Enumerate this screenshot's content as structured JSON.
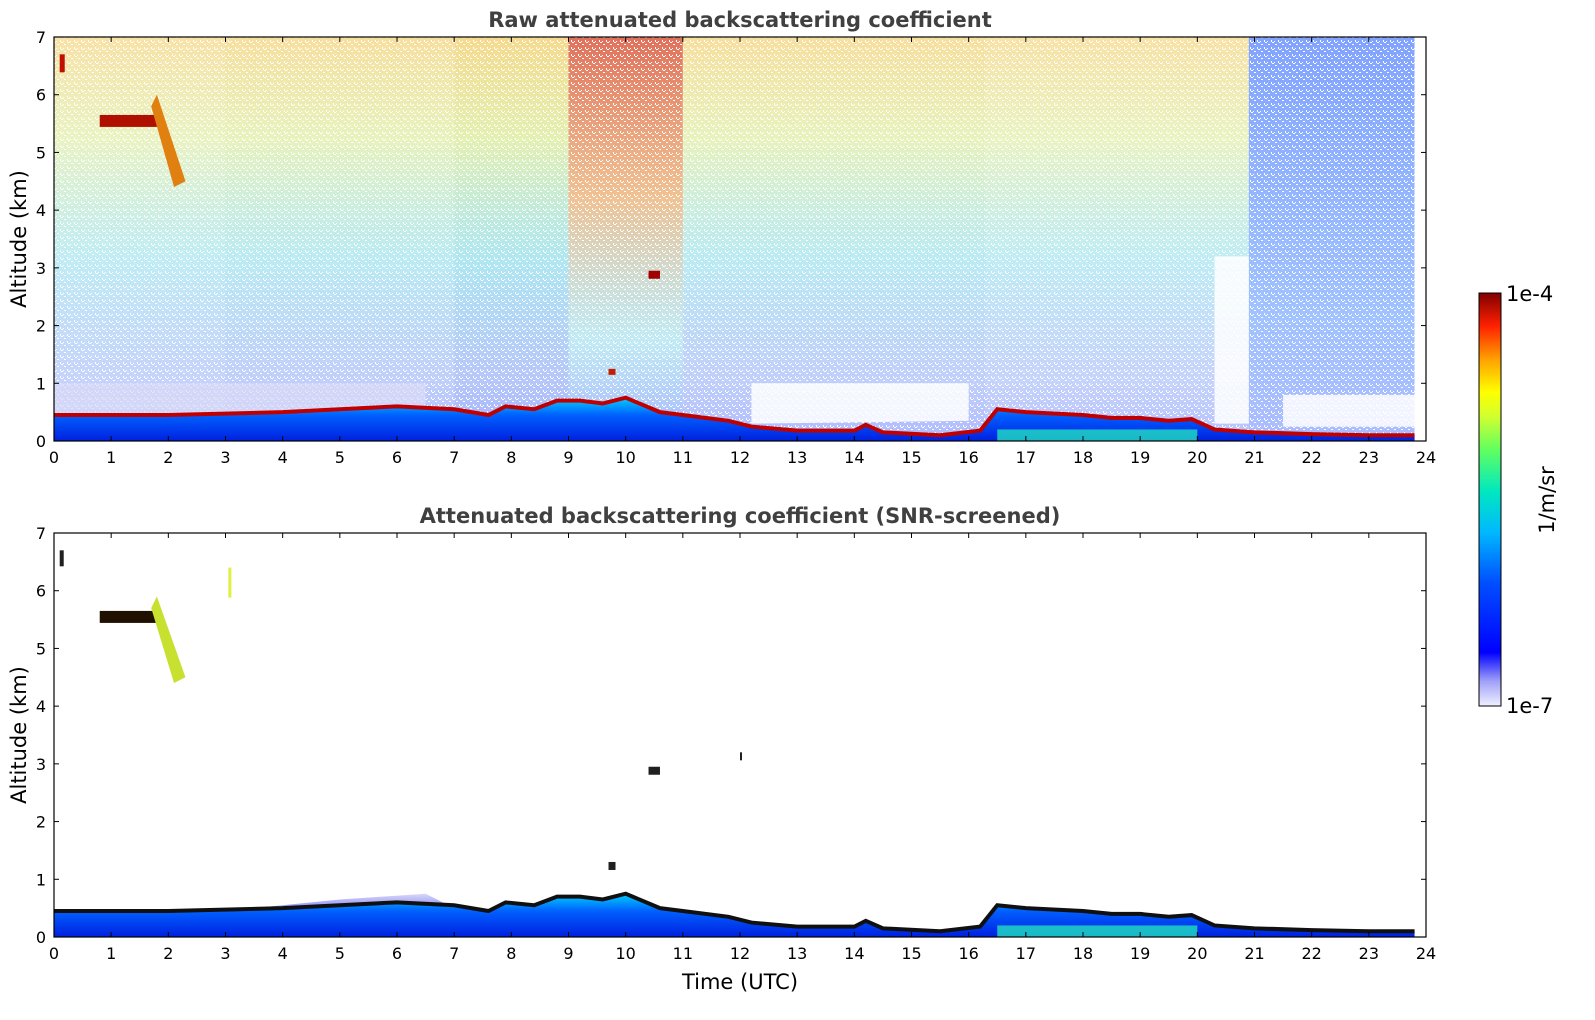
{
  "chart_data": [
    {
      "type": "heatmap",
      "title": "Raw attenuated backscattering coefficient",
      "xlabel": "",
      "ylabel": "Altitude (km)",
      "xlim": [
        0,
        24
      ],
      "ylim": [
        0,
        7
      ],
      "xticks": [
        "0",
        "1",
        "2",
        "3",
        "4",
        "5",
        "6",
        "7",
        "8",
        "9",
        "10",
        "11",
        "12",
        "13",
        "14",
        "15",
        "16",
        "17",
        "18",
        "19",
        "20",
        "21",
        "22",
        "23",
        "24"
      ],
      "yticks": [
        "0",
        "1",
        "2",
        "3",
        "4",
        "5",
        "6",
        "7"
      ],
      "boundary_layer_top_km": [
        {
          "t": 0,
          "h": 0.45
        },
        {
          "t": 2,
          "h": 0.45
        },
        {
          "t": 4,
          "h": 0.5
        },
        {
          "t": 6,
          "h": 0.6
        },
        {
          "t": 7,
          "h": 0.55
        },
        {
          "t": 7.3,
          "h": 0.5
        },
        {
          "t": 7.6,
          "h": 0.45
        },
        {
          "t": 7.9,
          "h": 0.6
        },
        {
          "t": 8.4,
          "h": 0.55
        },
        {
          "t": 8.8,
          "h": 0.7
        },
        {
          "t": 9.2,
          "h": 0.7
        },
        {
          "t": 9.6,
          "h": 0.65
        },
        {
          "t": 10,
          "h": 0.75
        },
        {
          "t": 10.6,
          "h": 0.5
        },
        {
          "t": 11,
          "h": 0.45
        },
        {
          "t": 11.8,
          "h": 0.35
        },
        {
          "t": 12.2,
          "h": 0.25
        },
        {
          "t": 13,
          "h": 0.18
        },
        {
          "t": 14,
          "h": 0.18
        },
        {
          "t": 14.2,
          "h": 0.28
        },
        {
          "t": 14.5,
          "h": 0.15
        },
        {
          "t": 15.5,
          "h": 0.1
        },
        {
          "t": 16.2,
          "h": 0.18
        },
        {
          "t": 16.5,
          "h": 0.55
        },
        {
          "t": 17,
          "h": 0.5
        },
        {
          "t": 18,
          "h": 0.45
        },
        {
          "t": 18.5,
          "h": 0.4
        },
        {
          "t": 19,
          "h": 0.4
        },
        {
          "t": 19.5,
          "h": 0.35
        },
        {
          "t": 19.9,
          "h": 0.38
        },
        {
          "t": 20.3,
          "h": 0.2
        },
        {
          "t": 21,
          "h": 0.15
        },
        {
          "t": 22,
          "h": 0.12
        },
        {
          "t": 23,
          "h": 0.1
        },
        {
          "t": 23.8,
          "h": 0.1
        }
      ]
    },
    {
      "type": "heatmap",
      "title": "Attenuated backscattering coefficient (SNR-screened)",
      "xlabel": "Time (UTC)",
      "ylabel": "Altitude (km)",
      "xlim": [
        0,
        24
      ],
      "ylim": [
        0,
        7
      ],
      "xticks": [
        "0",
        "1",
        "2",
        "3",
        "4",
        "5",
        "6",
        "7",
        "8",
        "9",
        "10",
        "11",
        "12",
        "13",
        "14",
        "15",
        "16",
        "17",
        "18",
        "19",
        "20",
        "21",
        "22",
        "23",
        "24"
      ],
      "yticks": [
        "0",
        "1",
        "2",
        "3",
        "4",
        "5",
        "6",
        "7"
      ]
    }
  ],
  "colorbar": {
    "max_label": "1e-4",
    "min_label": "1e-7",
    "unit_label": "1/m/sr",
    "scale": "log",
    "colormap": [
      "#ffffff",
      "#c8c8f0",
      "#8080ff",
      "#0000ff",
      "#0060ff",
      "#00c0ff",
      "#00e0c0",
      "#40ff80",
      "#c0ff40",
      "#ffff00",
      "#ffc000",
      "#ff6000",
      "#ff0000",
      "#c00000",
      "#800000"
    ]
  }
}
